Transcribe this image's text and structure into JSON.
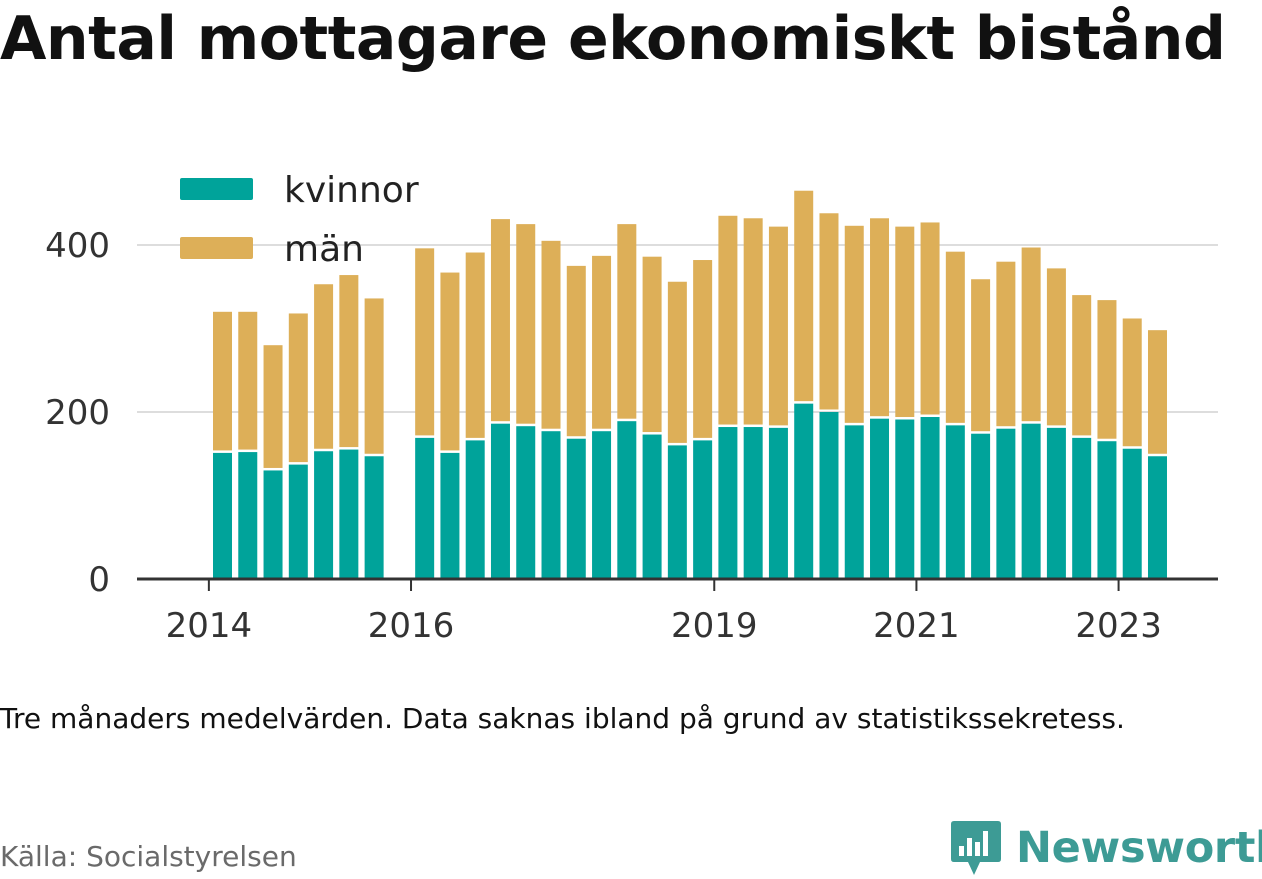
{
  "title": "Antal mottagare ekonomiskt bistånd",
  "note": "Tre månaders medelvärden. Data saknas ibland på grund av statistikssekretess.",
  "source": "Källa: Socialstyrelsen",
  "brand": {
    "name": "Newsworthy",
    "icon": "newsworthy-logo-icon",
    "color": "#3d9b95"
  },
  "chart_data": {
    "type": "bar",
    "stacked": true,
    "ylim": [
      0,
      480
    ],
    "yticks": [
      0,
      200,
      400
    ],
    "xticks": [
      "2014",
      "2016",
      "2019",
      "2021",
      "2023"
    ],
    "grid": true,
    "legend_position": "top-left",
    "series": [
      {
        "name": "kvinnor",
        "color": "#00a39a",
        "values": [
          151,
          152,
          130,
          137,
          153,
          155,
          147,
          null,
          169,
          151,
          166,
          186,
          183,
          177,
          168,
          177,
          189,
          173,
          160,
          166,
          182,
          182,
          181,
          210,
          200,
          184,
          192,
          191,
          194,
          184,
          174,
          180,
          186,
          181,
          169,
          165,
          156,
          147
        ]
      },
      {
        "name": "män",
        "color": "#ddaf58",
        "values": [
          169,
          168,
          150,
          181,
          200,
          209,
          189,
          null,
          227,
          216,
          225,
          245,
          242,
          228,
          207,
          210,
          236,
          213,
          196,
          216,
          253,
          250,
          241,
          255,
          238,
          239,
          240,
          231,
          233,
          208,
          185,
          200,
          211,
          191,
          171,
          169,
          156,
          151
        ]
      }
    ]
  }
}
